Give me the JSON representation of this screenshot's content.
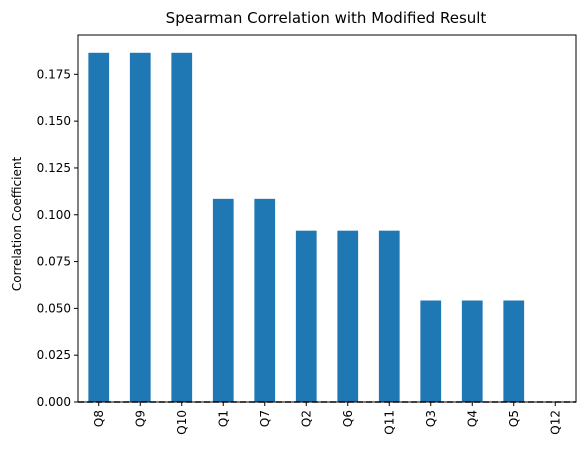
{
  "chart_data": {
    "type": "bar",
    "title": "Spearman Correlation with Modified Result",
    "xlabel": "",
    "ylabel": "Correlation Coefficient",
    "categories": [
      "Q8",
      "Q9",
      "Q10",
      "Q1",
      "Q7",
      "Q2",
      "Q6",
      "Q11",
      "Q3",
      "Q4",
      "Q5",
      "Q12"
    ],
    "values": [
      0.1865,
      0.1865,
      0.1865,
      0.1085,
      0.1085,
      0.0915,
      0.0915,
      0.0915,
      0.0542,
      0.0542,
      0.0542,
      0.0
    ],
    "ylim": [
      0,
      0.196
    ],
    "yticks": [
      0.0,
      0.025,
      0.05,
      0.075,
      0.1,
      0.125,
      0.15,
      0.175
    ],
    "ytick_labels": [
      "0.000",
      "0.025",
      "0.050",
      "0.075",
      "0.100",
      "0.125",
      "0.150",
      "0.175"
    ],
    "bar_color": "#1f77b4",
    "reference_line": {
      "y": 0,
      "style": "dashed",
      "color": "#000000"
    },
    "grid": false,
    "legend": "none"
  }
}
